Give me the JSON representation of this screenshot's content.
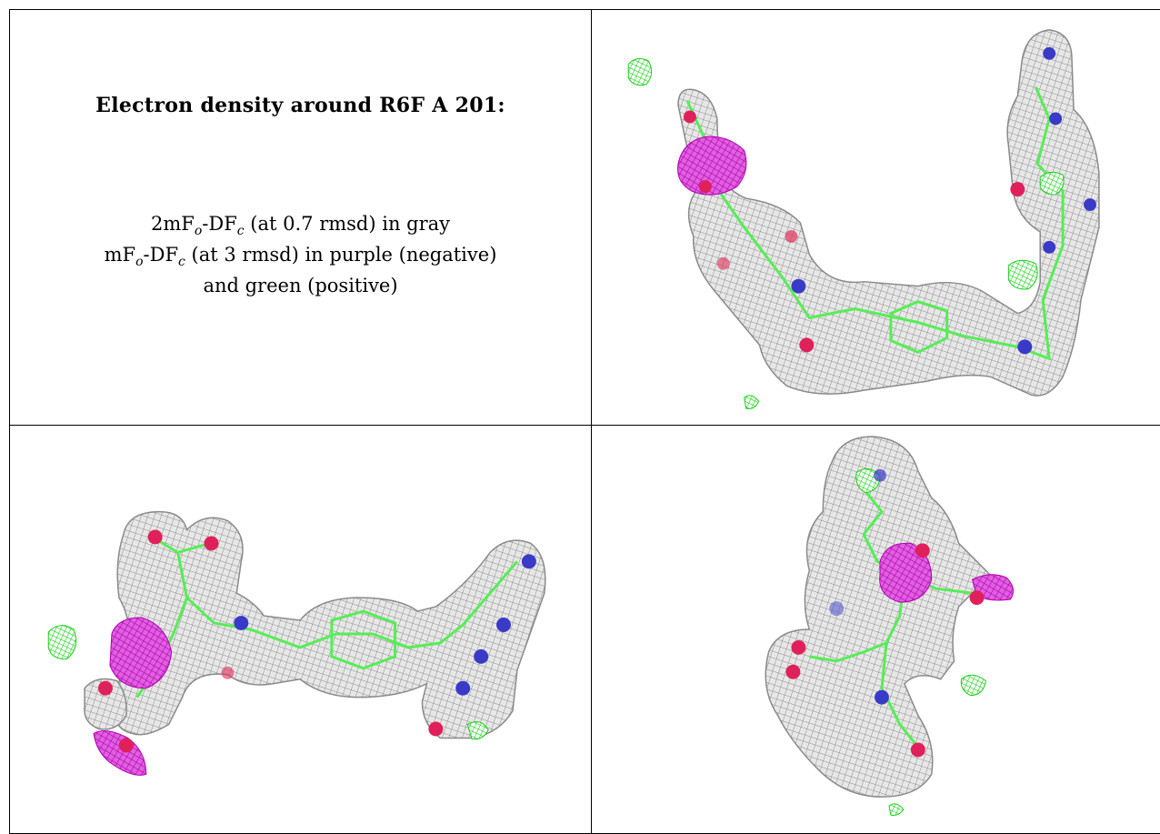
{
  "panel_text": {
    "heading": "Electron density around R6F A 201:",
    "line1_main": "2mF",
    "line1_sub_o": "o",
    "line1_mid": "-DF",
    "line1_sub_c": "c",
    "line1_tail": " (at 0.7 rmsd) in gray",
    "line2_main": "mF",
    "line2_sub_o": "o",
    "line2_mid": "-DF",
    "line2_sub_c": "c",
    "line2_tail": " (at 3 rmsd) in purple (negative)",
    "line3": "and green (positive)"
  },
  "colors": {
    "mesh_gray": "#9a9a9a",
    "mesh_fill": "#d6d6d6",
    "negative_purple": "#d11fd1",
    "positive_green": "#22e022",
    "bond_green": "#55ee55",
    "oxygen_red": "#e0205a",
    "nitrogen_blue": "#3a3ac8"
  },
  "views": [
    {
      "name": "view-top-right"
    },
    {
      "name": "view-bottom-left"
    },
    {
      "name": "view-bottom-right"
    }
  ]
}
